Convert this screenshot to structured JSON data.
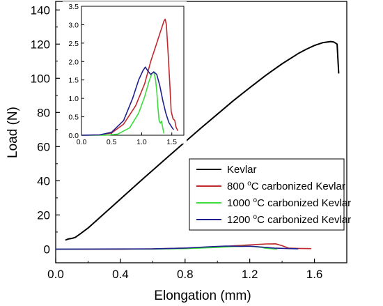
{
  "chart_data": {
    "type": "line",
    "xlabel": "Elongation (mm)",
    "ylabel": "Load (N)",
    "xlim": [
      0.0,
      1.8
    ],
    "ylim": [
      -8,
      145
    ],
    "x_ticks": [
      "0.0",
      "0.4",
      "0.8",
      "1.2",
      "1.6"
    ],
    "y_ticks": [
      "0",
      "20",
      "40",
      "60",
      "80",
      "100",
      "120",
      "140"
    ],
    "legend": {
      "placement": "right",
      "entries": [
        {
          "text": "Kevlar",
          "color": "#000000"
        },
        {
          "pre": "800 ",
          "sup": "o",
          "post": "C carbonized Kevlar",
          "color": "#c0282d"
        },
        {
          "pre": "1000 ",
          "sup": "o",
          "post": "C carbonized Kevlar",
          "color": "#3ddc3d"
        },
        {
          "pre": "1200 ",
          "sup": "o",
          "post": "C carbonized Kevlar",
          "color": "#1f1f8f"
        }
      ]
    },
    "series": [
      {
        "color": "#000000",
        "points": [
          [
            0.06,
            5.3
          ],
          [
            0.08,
            6.0
          ],
          [
            0.1,
            6.3
          ],
          [
            0.12,
            6.8
          ],
          [
            0.15,
            8.8
          ],
          [
            0.2,
            12.3
          ],
          [
            0.3,
            20.8
          ],
          [
            0.4,
            29.3
          ],
          [
            0.5,
            37.8
          ],
          [
            0.6,
            46.2
          ],
          [
            0.7,
            54.5
          ],
          [
            0.8,
            62.8
          ],
          [
            0.9,
            71.0
          ],
          [
            1.0,
            79.0
          ],
          [
            1.1,
            87.0
          ],
          [
            1.2,
            94.5
          ],
          [
            1.3,
            101.8
          ],
          [
            1.4,
            108.5
          ],
          [
            1.5,
            114.5
          ],
          [
            1.55,
            117.0
          ],
          [
            1.6,
            119.2
          ],
          [
            1.65,
            120.8
          ],
          [
            1.7,
            121.5
          ],
          [
            1.72,
            121.2
          ],
          [
            1.74,
            120.0
          ],
          [
            1.75,
            102.8
          ]
        ]
      },
      {
        "color": "#c0282d",
        "points": [
          [
            0.0,
            0.0
          ],
          [
            0.4,
            0.0
          ],
          [
            0.6,
            0.15
          ],
          [
            0.8,
            0.6
          ],
          [
            1.0,
            1.3
          ],
          [
            1.1,
            1.9
          ],
          [
            1.2,
            2.5
          ],
          [
            1.3,
            3.0
          ],
          [
            1.36,
            3.1
          ],
          [
            1.4,
            2.0
          ],
          [
            1.44,
            0.6
          ],
          [
            1.5,
            0.4
          ],
          [
            1.58,
            0.3
          ]
        ]
      },
      {
        "color": "#3ddc3d",
        "points": [
          [
            0.0,
            0.0
          ],
          [
            0.6,
            0.05
          ],
          [
            0.8,
            0.3
          ],
          [
            1.0,
            1.0
          ],
          [
            1.1,
            1.5
          ],
          [
            1.17,
            1.7
          ],
          [
            1.22,
            1.6
          ],
          [
            1.27,
            1.0
          ],
          [
            1.3,
            0.5
          ],
          [
            1.33,
            0.3
          ],
          [
            1.37,
            0.0
          ]
        ]
      },
      {
        "color": "#1f1f8f",
        "points": [
          [
            0.0,
            0.0
          ],
          [
            0.6,
            0.1
          ],
          [
            0.8,
            0.6
          ],
          [
            0.95,
            1.4
          ],
          [
            1.05,
            1.8
          ],
          [
            1.1,
            1.7
          ],
          [
            1.15,
            1.6
          ],
          [
            1.2,
            1.7
          ],
          [
            1.28,
            1.2
          ],
          [
            1.35,
            0.6
          ],
          [
            1.45,
            0.3
          ],
          [
            1.5,
            0.2
          ]
        ]
      }
    ],
    "inset": {
      "xlim": [
        0.0,
        1.7
      ],
      "ylim": [
        0.0,
        3.5
      ],
      "x_ticks": [
        "0.0",
        "0.5",
        "1.0",
        "1.5"
      ],
      "y_ticks": [
        "0.0",
        "0.5",
        "1.0",
        "1.5",
        "2.0",
        "2.5",
        "3.0",
        "3.5"
      ],
      "series": [
        {
          "color": "#c0282d",
          "points": [
            [
              0.0,
              0.0
            ],
            [
              0.3,
              0.01
            ],
            [
              0.5,
              0.06
            ],
            [
              0.7,
              0.3
            ],
            [
              0.9,
              0.8
            ],
            [
              1.05,
              1.4
            ],
            [
              1.15,
              2.0
            ],
            [
              1.25,
              2.5
            ],
            [
              1.32,
              2.85
            ],
            [
              1.37,
              3.1
            ],
            [
              1.39,
              3.15
            ],
            [
              1.41,
              3.0
            ],
            [
              1.44,
              2.2
            ],
            [
              1.47,
              1.3
            ],
            [
              1.49,
              0.65
            ],
            [
              1.52,
              0.45
            ],
            [
              1.55,
              0.4
            ],
            [
              1.57,
              0.22
            ],
            [
              1.6,
              0.12
            ]
          ]
        },
        {
          "color": "#3ddc3d",
          "points": [
            [
              0.0,
              0.0
            ],
            [
              0.4,
              0.0
            ],
            [
              0.6,
              0.03
            ],
            [
              0.8,
              0.2
            ],
            [
              0.95,
              0.6
            ],
            [
              1.05,
              1.05
            ],
            [
              1.12,
              1.45
            ],
            [
              1.17,
              1.68
            ],
            [
              1.2,
              1.72
            ],
            [
              1.23,
              1.5
            ],
            [
              1.25,
              1.2
            ],
            [
              1.27,
              0.75
            ],
            [
              1.29,
              0.4
            ],
            [
              1.31,
              0.33
            ],
            [
              1.33,
              0.38
            ],
            [
              1.35,
              0.2
            ],
            [
              1.37,
              0.05
            ]
          ]
        },
        {
          "color": "#1f1f8f",
          "points": [
            [
              0.0,
              0.0
            ],
            [
              0.3,
              0.01
            ],
            [
              0.5,
              0.08
            ],
            [
              0.7,
              0.4
            ],
            [
              0.85,
              1.0
            ],
            [
              0.95,
              1.5
            ],
            [
              1.02,
              1.75
            ],
            [
              1.06,
              1.85
            ],
            [
              1.1,
              1.75
            ],
            [
              1.15,
              1.65
            ],
            [
              1.2,
              1.72
            ],
            [
              1.25,
              1.65
            ],
            [
              1.3,
              1.35
            ],
            [
              1.35,
              0.95
            ],
            [
              1.4,
              0.6
            ],
            [
              1.45,
              0.35
            ],
            [
              1.5,
              0.22
            ],
            [
              1.53,
              0.15
            ]
          ]
        }
      ]
    }
  }
}
